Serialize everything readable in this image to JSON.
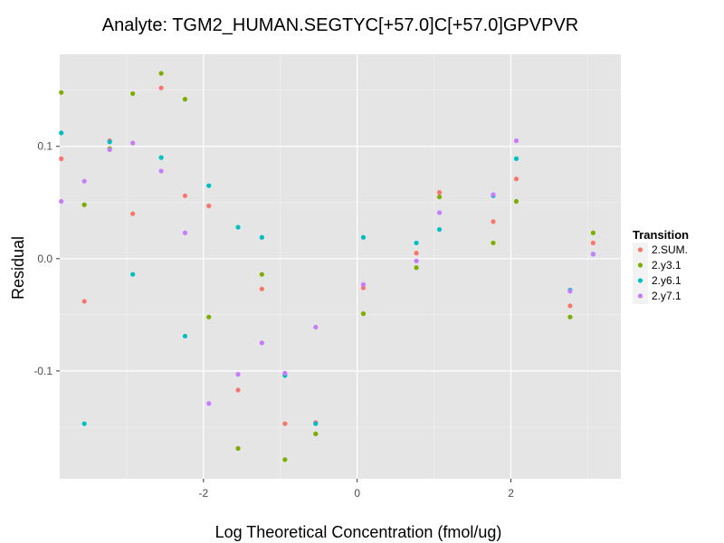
{
  "chart_data": {
    "type": "scatter",
    "title": "Analyte: TGM2_HUMAN.SEGTYC[+57.0]C[+57.0]GPVPVR",
    "xlabel": "Log Theoretical Concentration (fmol/ug)",
    "ylabel": "Residual",
    "xlim": [
      -3.87,
      3.43
    ],
    "ylim": [
      -0.196,
      0.182
    ],
    "x_ticks": [
      -2,
      0,
      2
    ],
    "x_tick_labels": [
      "-2",
      "0",
      "2"
    ],
    "y_ticks": [
      -0.1,
      0.0,
      0.1
    ],
    "y_tick_labels": [
      "-0.1",
      "0.0",
      "0.1"
    ],
    "grid": true,
    "legend": {
      "title": "Transition",
      "position": "right"
    },
    "series": [
      {
        "name": "2.SUM.",
        "color": "#F8766D",
        "x": [
          -3.85,
          -3.55,
          -3.22,
          -2.92,
          -2.55,
          -2.24,
          -1.93,
          -1.55,
          -1.24,
          -0.94,
          -0.54,
          0.08,
          0.77,
          1.07,
          1.77,
          2.07,
          2.77,
          3.07
        ],
        "y": [
          0.089,
          -0.038,
          0.105,
          0.04,
          0.152,
          0.056,
          0.047,
          -0.117,
          -0.027,
          -0.147,
          -0.146,
          -0.026,
          0.005,
          0.059,
          0.033,
          0.071,
          -0.042,
          0.014
        ]
      },
      {
        "name": "2.y3.1",
        "color": "#7CAE00",
        "x": [
          -3.85,
          -3.55,
          -3.22,
          -2.92,
          -2.55,
          -2.24,
          -1.93,
          -1.55,
          -1.24,
          -0.94,
          -0.54,
          0.08,
          0.77,
          1.07,
          1.77,
          2.07,
          2.77,
          3.07
        ],
        "y": [
          0.148,
          0.048,
          0.098,
          0.147,
          0.165,
          0.142,
          -0.052,
          -0.169,
          -0.014,
          -0.179,
          -0.156,
          -0.049,
          -0.008,
          0.055,
          0.014,
          0.051,
          -0.052,
          0.023
        ]
      },
      {
        "name": "2.y6.1",
        "color": "#00BFC4",
        "x": [
          -3.85,
          -3.55,
          -3.22,
          -2.92,
          -2.55,
          -2.24,
          -1.93,
          -1.55,
          -1.24,
          -0.94,
          -0.54,
          0.08,
          0.77,
          1.07,
          1.77,
          2.07,
          2.77,
          3.07
        ],
        "y": [
          0.112,
          -0.147,
          0.104,
          -0.014,
          0.09,
          -0.069,
          0.065,
          0.028,
          0.019,
          -0.104,
          -0.147,
          0.019,
          0.014,
          0.026,
          0.056,
          0.089,
          -0.028,
          0.004
        ]
      },
      {
        "name": "2.y7.1",
        "color": "#C77CFF",
        "x": [
          -3.85,
          -3.55,
          -3.22,
          -2.92,
          -2.55,
          -2.24,
          -1.93,
          -1.55,
          -1.24,
          -0.94,
          -0.54,
          0.08,
          0.77,
          1.07,
          1.77,
          2.07,
          2.77,
          3.07
        ],
        "y": [
          0.051,
          0.069,
          0.097,
          0.103,
          0.078,
          0.023,
          -0.129,
          -0.103,
          -0.075,
          -0.102,
          -0.061,
          -0.023,
          -0.002,
          0.041,
          0.057,
          0.105,
          -0.029,
          0.004
        ]
      }
    ]
  }
}
